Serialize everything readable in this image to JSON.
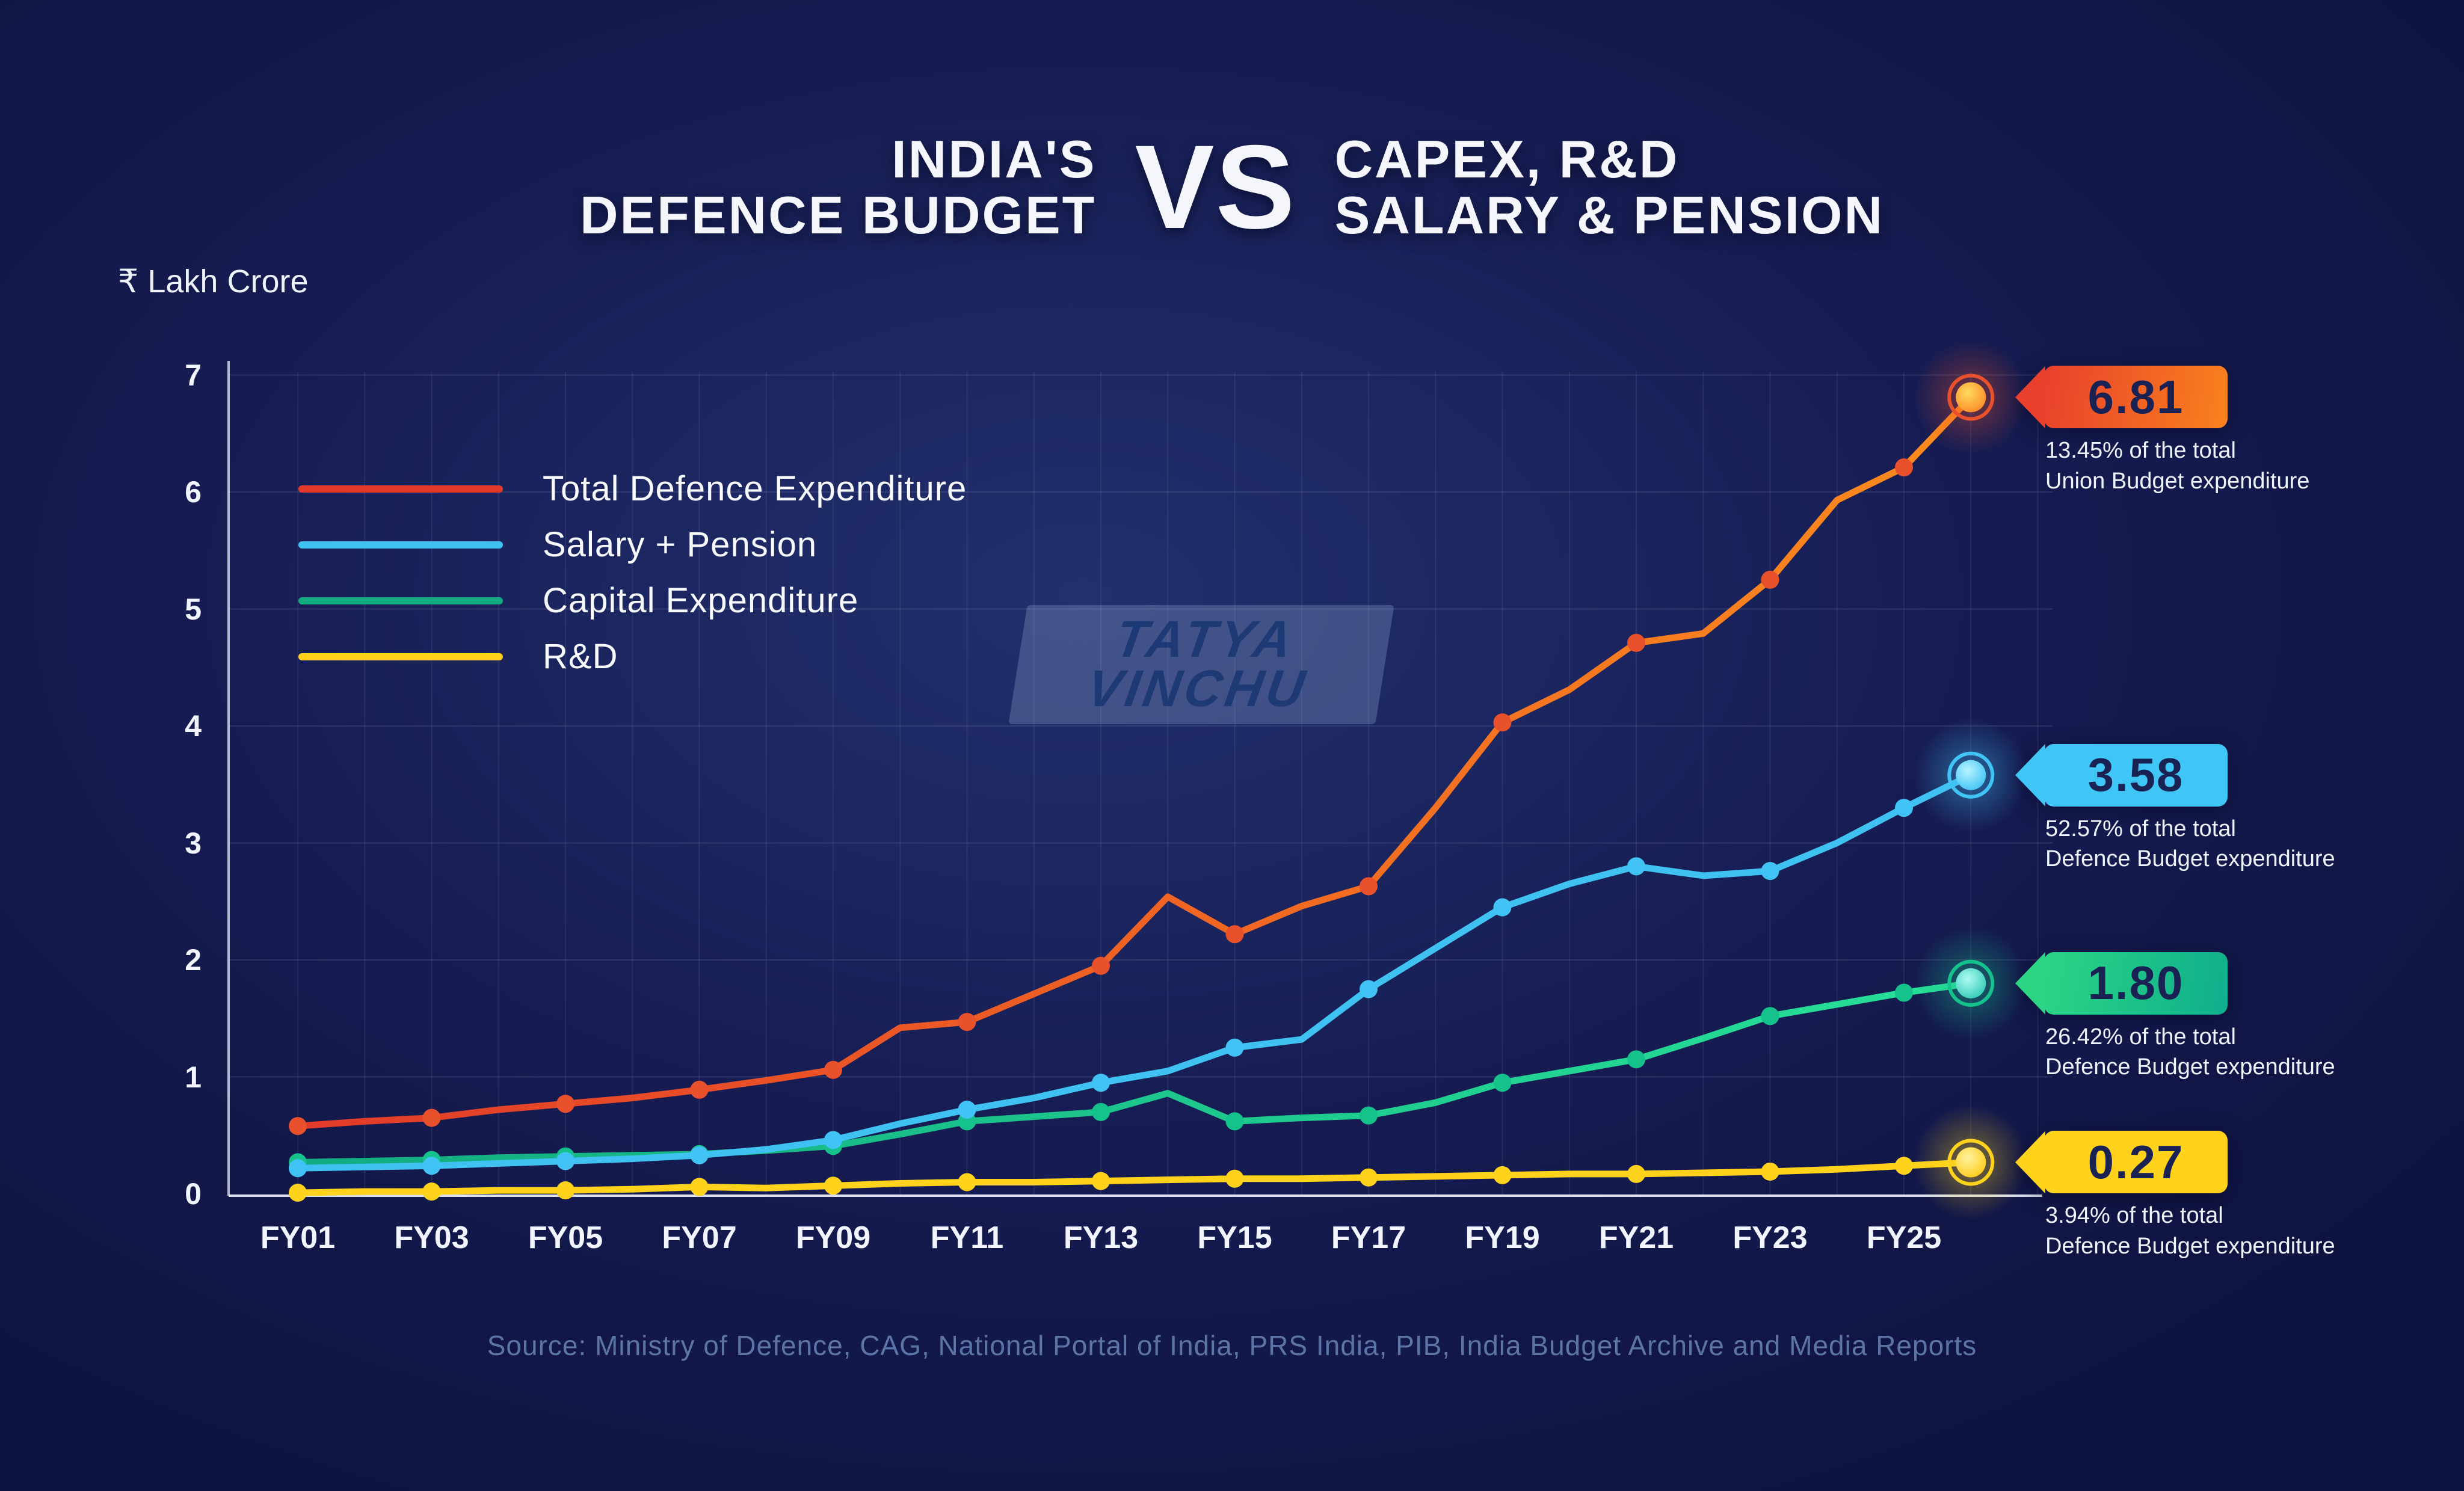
{
  "title": {
    "left_line1": "INDIA'S",
    "left_line2": "DEFENCE BUDGET",
    "vs": "VS",
    "right_line1": "CAPEX, R&D",
    "right_line2": "SALARY & PENSION"
  },
  "y_axis_label": "₹ Lakh Crore",
  "watermark": {
    "line1": "TATYA",
    "line2": "VINCHU"
  },
  "source": "Source: Ministry of Defence, CAG,  National Portal of India, PRS India, PIB, India Budget Archive and Media Reports",
  "callouts": [
    {
      "value": "6.81",
      "anchor_value": 6.81,
      "desc_line1": "13.45% of the total",
      "desc_line2": "Union Budget expenditure",
      "tag_color_start": "#e8402c",
      "tag_color_end": "#f9821d",
      "text_color": "#1a2153"
    },
    {
      "value": "3.58",
      "anchor_value": 3.58,
      "desc_line1": "52.57% of the total",
      "desc_line2": "Defence Budget expenditure",
      "tag_color_start": "#3fc6f7",
      "tag_color_end": "#3fc6f7",
      "text_color": "#1a2153"
    },
    {
      "value": "1.80",
      "anchor_value": 1.8,
      "desc_line1": "26.42% of the total",
      "desc_line2": "Defence Budget expenditure",
      "tag_color_start": "#2bd584",
      "tag_color_end": "#0fae8d",
      "text_color": "#1a2153"
    },
    {
      "value": "0.27",
      "anchor_value": 0.27,
      "desc_line1": "3.94% of the total",
      "desc_line2": "Defence Budget expenditure",
      "tag_color_start": "#ffd21c",
      "tag_color_end": "#ffd21c",
      "text_color": "#1a2153"
    }
  ],
  "chart_data": {
    "type": "line",
    "title": "India's Defence Budget vs Capex, R&D, Salary & Pension",
    "ylabel": "₹ Lakh Crore",
    "ylim": [
      0,
      7
    ],
    "yticks": [
      0,
      1,
      2,
      3,
      4,
      5,
      6,
      7
    ],
    "grid": true,
    "legend_position": "upper-left",
    "x": [
      "FY01",
      "FY02",
      "FY03",
      "FY04",
      "FY05",
      "FY06",
      "FY07",
      "FY08",
      "FY09",
      "FY10",
      "FY11",
      "FY12",
      "FY13",
      "FY14",
      "FY15",
      "FY16",
      "FY17",
      "FY18",
      "FY19",
      "FY20",
      "FY21",
      "FY22",
      "FY23",
      "FY24",
      "FY25",
      "FY26"
    ],
    "x_tick_labels": [
      "FY01",
      "FY03",
      "FY05",
      "FY07",
      "FY09",
      "FY11",
      "FY13",
      "FY15",
      "FY17",
      "FY19",
      "FY21",
      "FY23",
      "FY25"
    ],
    "series": [
      {
        "name": "Total Defence Expenditure",
        "color": "#e23a2a",
        "color2": "#fb8b1e",
        "marker_color": "#e8512b",
        "end_inner": [
          "#ffd95e",
          "#fb7d1e"
        ],
        "values": [
          0.58,
          0.62,
          0.65,
          0.72,
          0.77,
          0.82,
          0.89,
          0.97,
          1.06,
          1.42,
          1.47,
          1.71,
          1.95,
          2.54,
          2.22,
          2.46,
          2.63,
          3.3,
          4.03,
          4.31,
          4.71,
          4.79,
          5.25,
          5.93,
          6.21,
          6.81
        ]
      },
      {
        "name": "Salary + Pension",
        "color": "#3fc1f2",
        "color2": "#3fc1f2",
        "marker_color": "#41c3f5",
        "end_inner": [
          "#b8f4ff",
          "#29b9f2"
        ],
        "values": [
          0.22,
          0.23,
          0.24,
          0.26,
          0.28,
          0.3,
          0.33,
          0.38,
          0.46,
          0.6,
          0.72,
          0.82,
          0.95,
          1.05,
          1.25,
          1.32,
          1.75,
          2.1,
          2.45,
          2.65,
          2.8,
          2.72,
          2.76,
          3.0,
          3.3,
          3.58
        ]
      },
      {
        "name": "Capital Expenditure",
        "color": "#12ab80",
        "color2": "#27e098",
        "marker_color": "#16c28c",
        "end_inner": [
          "#aefcf0",
          "#1ec0ae"
        ],
        "values": [
          0.27,
          0.28,
          0.29,
          0.31,
          0.32,
          0.33,
          0.34,
          0.37,
          0.41,
          0.51,
          0.62,
          0.66,
          0.7,
          0.86,
          0.62,
          0.65,
          0.67,
          0.78,
          0.95,
          1.05,
          1.15,
          1.33,
          1.52,
          1.62,
          1.72,
          1.8
        ]
      },
      {
        "name": "R&D",
        "color": "#ffd21c",
        "color2": "#ffd21c",
        "marker_color": "#ffd21c",
        "end_inner": [
          "#fff3a0",
          "#ffc400"
        ],
        "values": [
          0.01,
          0.02,
          0.02,
          0.03,
          0.03,
          0.04,
          0.06,
          0.05,
          0.07,
          0.09,
          0.1,
          0.1,
          0.11,
          0.12,
          0.13,
          0.13,
          0.14,
          0.15,
          0.16,
          0.17,
          0.17,
          0.18,
          0.19,
          0.21,
          0.24,
          0.27
        ]
      }
    ]
  }
}
